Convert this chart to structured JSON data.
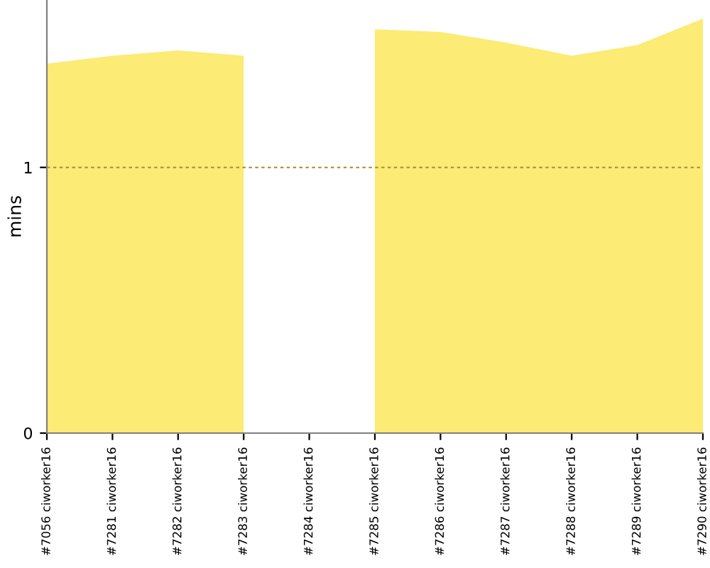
{
  "chart_data": {
    "type": "area",
    "ylabel": "mins",
    "categories": [
      "#7056 ciworker16",
      "#7281 ciworker16",
      "#7282 ciworker16",
      "#7283 ciworker16",
      "#7284 ciworker16",
      "#7285 ciworker16",
      "#7286 ciworker16",
      "#7287 ciworker16",
      "#7288 ciworker16",
      "#7289 ciworker16",
      "#7290 ciworker16"
    ],
    "series": [
      {
        "color": "#fceb74",
        "values": [
          1.39,
          1.42,
          1.44,
          1.42,
          null,
          1.52,
          1.51,
          1.47,
          1.42,
          1.46,
          1.56
        ]
      }
    ],
    "ylim": [
      0,
      1.63
    ],
    "yticks": [
      0,
      1
    ],
    "ref_lines": [
      {
        "axis": "y",
        "value": 1,
        "color": "#a89a40",
        "line_style": "dashed"
      }
    ]
  }
}
